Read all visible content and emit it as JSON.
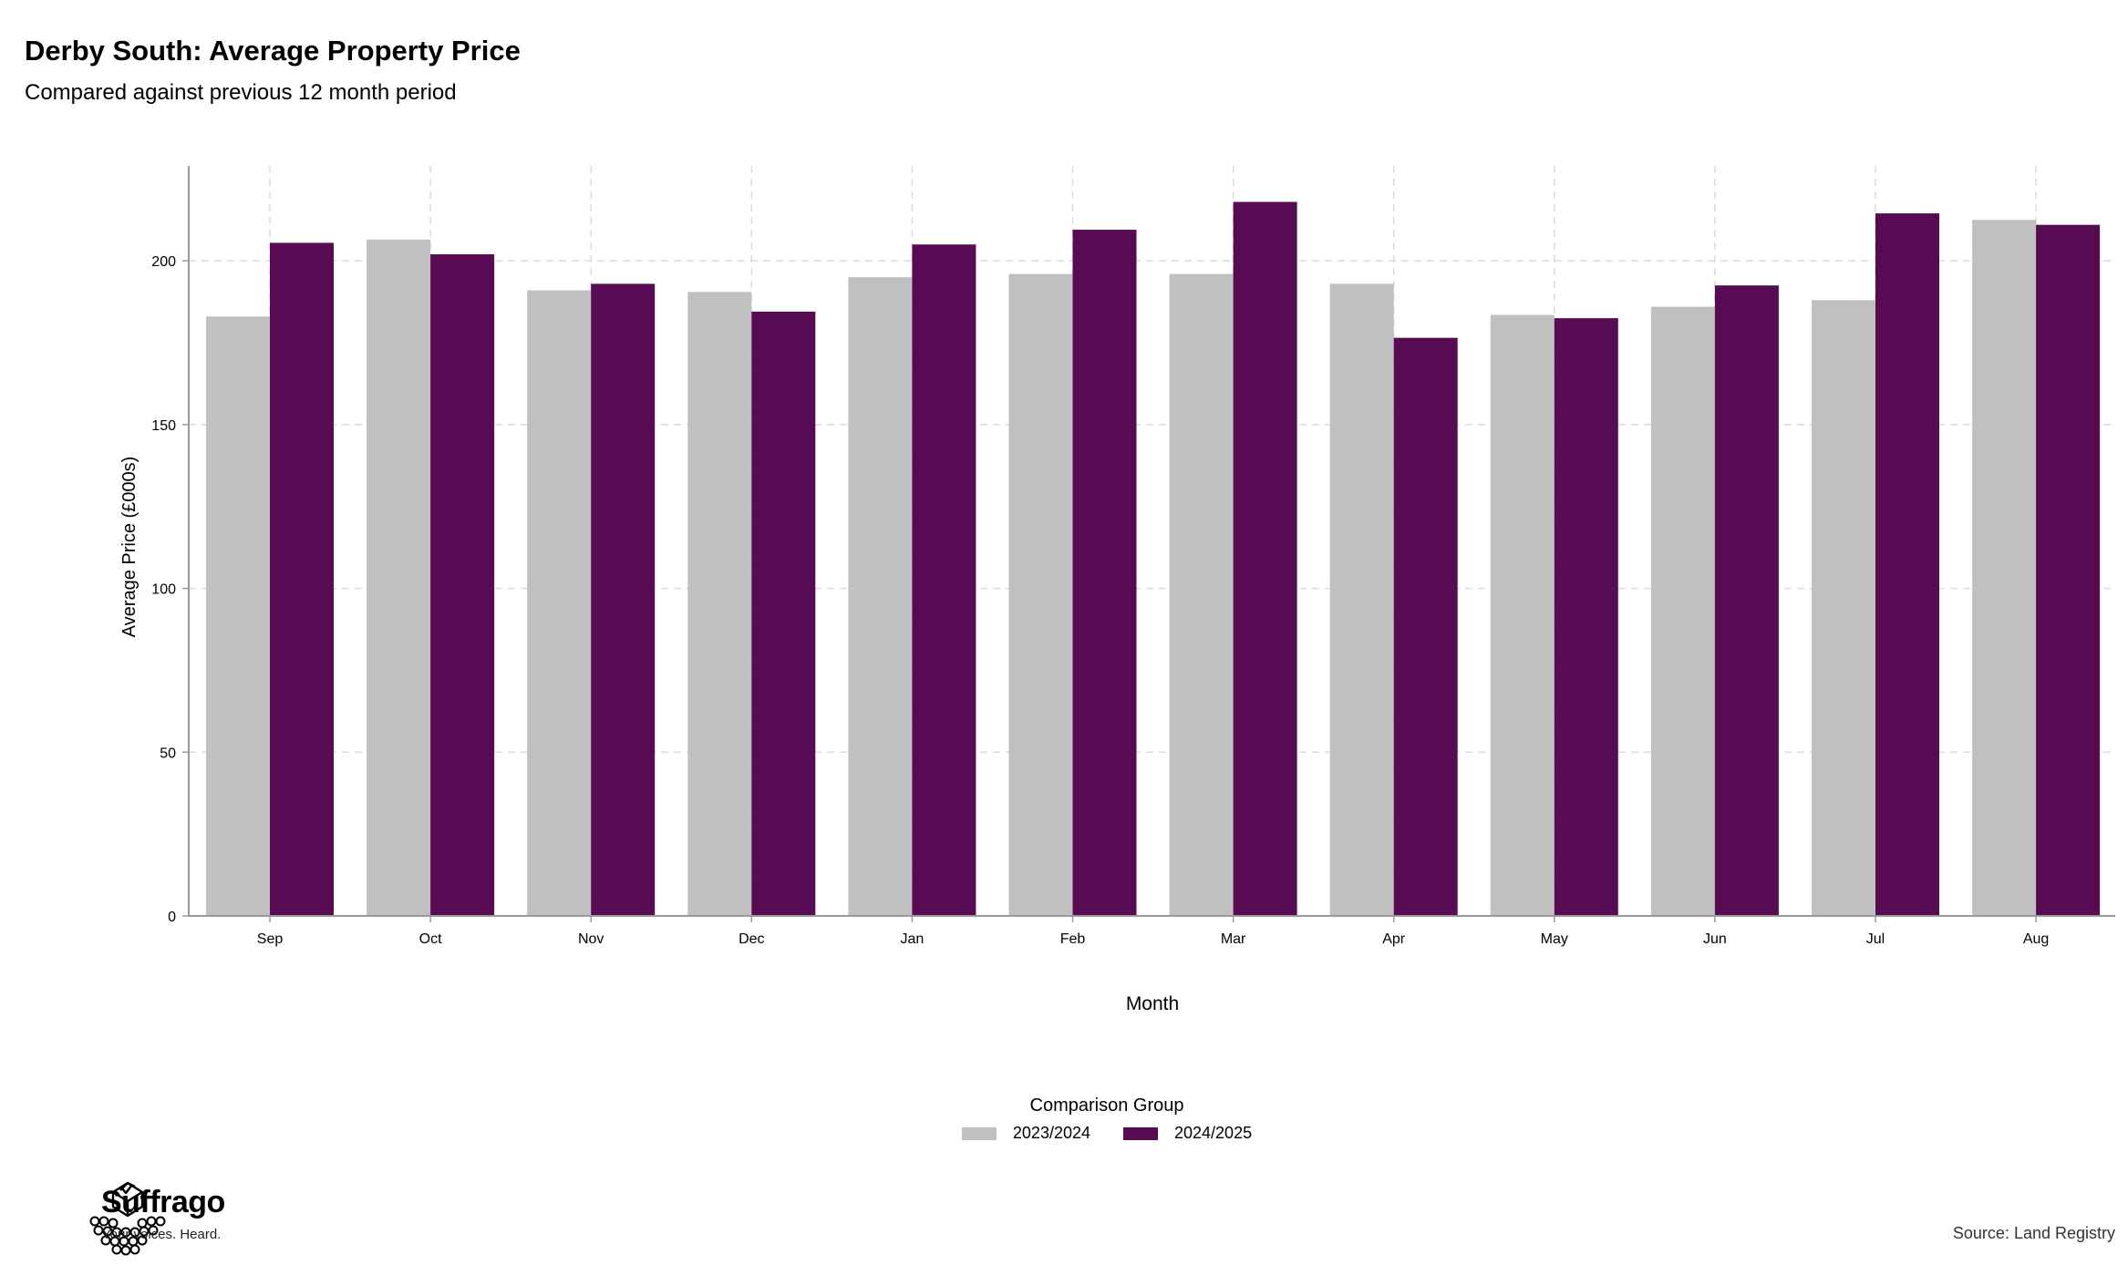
{
  "title": "Derby South: Average Property Price",
  "subtitle": "Compared against previous 12 month period",
  "legend_title": "Comparison Group",
  "brand": {
    "name": "Suffrago",
    "tagline": "Your voices. Heard.",
    "logo_icon": "ballot-box-crowd-icon"
  },
  "source": "Source: Land Registry",
  "colors": {
    "2023/2024": "#c0c0c0",
    "2024/2025": "#570b52",
    "grid": "#dcdcdc",
    "axis": "#9a9a9a"
  },
  "chart_data": {
    "type": "bar",
    "categories": [
      "Sep",
      "Oct",
      "Nov",
      "Dec",
      "Jan",
      "Feb",
      "Mar",
      "Apr",
      "May",
      "Jun",
      "Jul",
      "Aug"
    ],
    "series": [
      {
        "name": "2023/2024",
        "values": [
          183,
          206.5,
          191,
          190.5,
          195,
          196,
          196,
          193,
          183.5,
          186,
          188,
          212.5
        ]
      },
      {
        "name": "2024/2025",
        "values": [
          205.5,
          202,
          193,
          184.5,
          205,
          209.5,
          218,
          176.5,
          182.5,
          192.5,
          214.5,
          211
        ]
      }
    ],
    "xlabel": "Month",
    "ylabel": "Average Price (£000s)",
    "yticks": [
      0,
      50,
      100,
      150,
      200
    ],
    "ylim": [
      0,
      229
    ],
    "grid": true,
    "legend_position": "bottom"
  }
}
